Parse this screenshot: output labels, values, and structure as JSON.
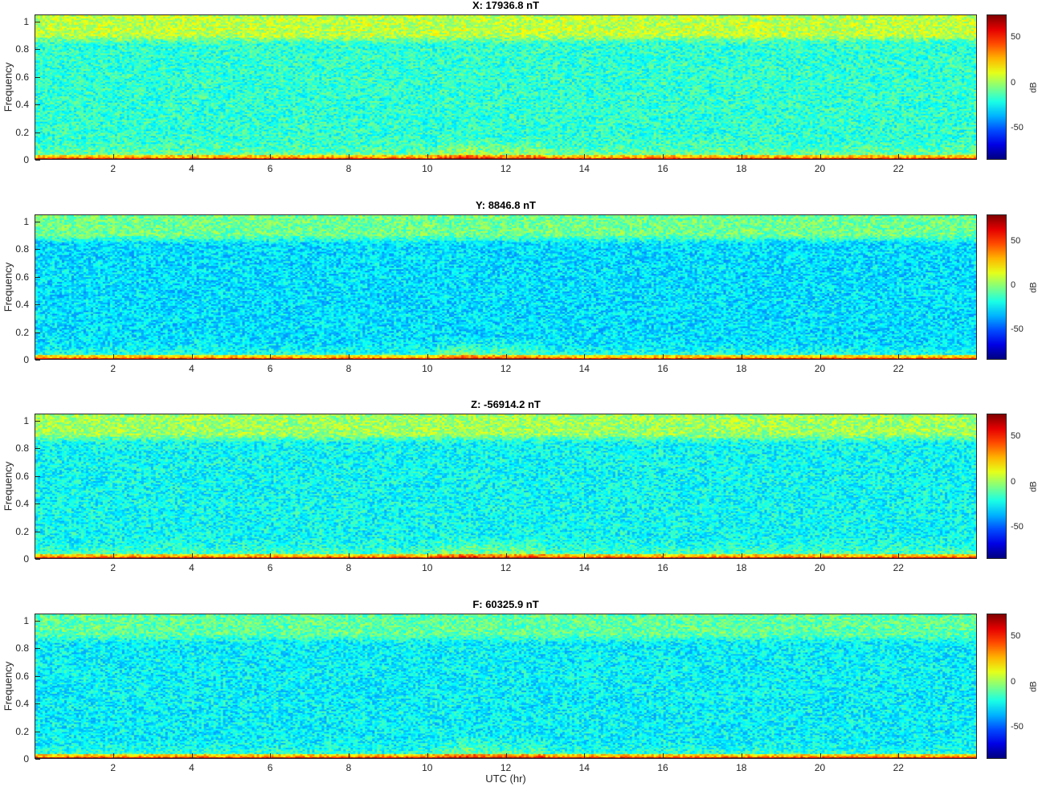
{
  "chart_data": [
    {
      "type": "heatmap",
      "title": "X: 17936.8 nT",
      "ylabel": "Frequency",
      "xlabel": "",
      "xlim": [
        0,
        24
      ],
      "ylim": [
        0,
        1.05
      ],
      "x_ticks": [
        "2",
        "4",
        "6",
        "8",
        "10",
        "12",
        "14",
        "16",
        "18",
        "20",
        "22"
      ],
      "y_ticks": [
        "0",
        "0.2",
        "0.4",
        "0.6",
        "0.8",
        "1"
      ],
      "colorbar": {
        "label": "dB",
        "range": [
          -85,
          75
        ],
        "ticks": [
          "50",
          "0",
          "-50"
        ]
      },
      "background_level_db": -18,
      "high_band_level_db": 5,
      "low_band_level_db": 40,
      "disturbance_hours": [
        10.2,
        11.5
      ]
    },
    {
      "type": "heatmap",
      "title": "Y: 8846.8 nT",
      "ylabel": "Frequency",
      "xlabel": "",
      "xlim": [
        0,
        24
      ],
      "ylim": [
        0,
        1.05
      ],
      "x_ticks": [
        "2",
        "4",
        "6",
        "8",
        "10",
        "12",
        "14",
        "16",
        "18",
        "20",
        "22"
      ],
      "y_ticks": [
        "0",
        "0.2",
        "0.4",
        "0.6",
        "0.8",
        "1"
      ],
      "colorbar": {
        "label": "dB",
        "range": [
          -85,
          80
        ],
        "ticks": [
          "50",
          "0",
          "-50"
        ]
      },
      "background_level_db": -28,
      "high_band_level_db": -5,
      "low_band_level_db": 40,
      "disturbance_hours": [
        10.2,
        11.5
      ]
    },
    {
      "type": "heatmap",
      "title": "Z: -56914.2 nT",
      "ylabel": "Frequency",
      "xlabel": "",
      "xlim": [
        0,
        24
      ],
      "ylim": [
        0,
        1.05
      ],
      "x_ticks": [
        "2",
        "4",
        "6",
        "8",
        "10",
        "12",
        "14",
        "16",
        "18",
        "20",
        "22"
      ],
      "y_ticks": [
        "0",
        "0.2",
        "0.4",
        "0.6",
        "0.8",
        "1"
      ],
      "colorbar": {
        "label": "dB",
        "range": [
          -85,
          75
        ],
        "ticks": [
          "50",
          "0",
          "-50"
        ]
      },
      "background_level_db": -24,
      "high_band_level_db": 0,
      "low_band_level_db": 40,
      "disturbance_hours": [
        10.2,
        11.5
      ]
    },
    {
      "type": "heatmap",
      "title": "F: 60325.9 nT",
      "ylabel": "Frequency",
      "xlabel": "UTC (hr)",
      "xlim": [
        0,
        24
      ],
      "ylim": [
        0,
        1.05
      ],
      "x_ticks": [
        "2",
        "4",
        "6",
        "8",
        "10",
        "12",
        "14",
        "16",
        "18",
        "20",
        "22"
      ],
      "y_ticks": [
        "0",
        "0.2",
        "0.4",
        "0.6",
        "0.8",
        "1"
      ],
      "colorbar": {
        "label": "dB",
        "range": [
          -85,
          75
        ],
        "ticks": [
          "50",
          "0",
          "-50"
        ]
      },
      "background_level_db": -26,
      "high_band_level_db": -10,
      "low_band_level_db": 40,
      "disturbance_hours": [
        10.2,
        11.5
      ]
    }
  ]
}
